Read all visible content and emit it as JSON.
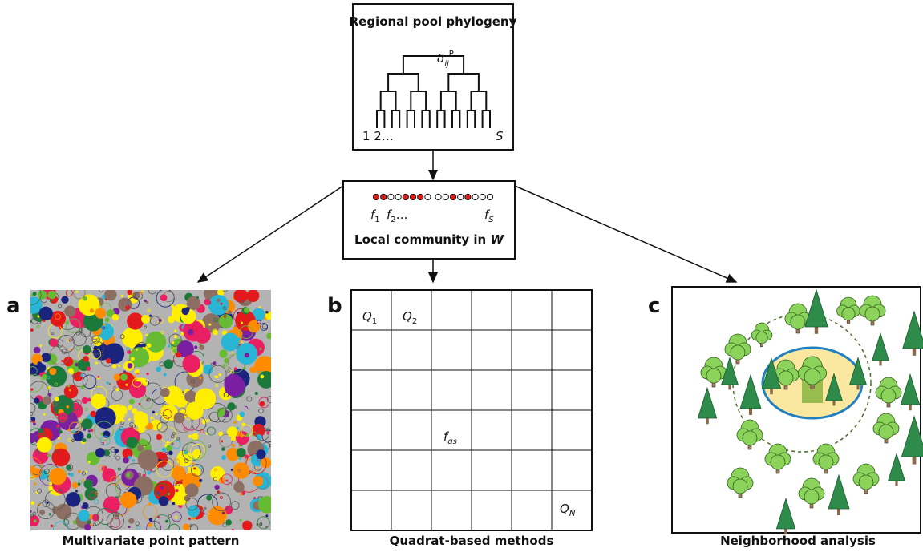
{
  "top_box": {
    "title": "Regional pool phylogeny",
    "distance": {
      "base": "δ",
      "sub": "ij",
      "sup": "P"
    },
    "tips_first": "1 2…",
    "tips_last": "S"
  },
  "middle_box": {
    "title": "Local community in ",
    "title_emphasis": "W",
    "f1": {
      "base": "f",
      "sub": "1"
    },
    "f2": {
      "base": "f",
      "sub": "2",
      "tail": "…"
    },
    "fS": {
      "base": "f",
      "sub": "S"
    }
  },
  "panels": [
    {
      "letter": "a",
      "caption": "Multivariate point pattern"
    },
    {
      "letter": "b",
      "caption": "Quadrat-based methods",
      "q1": {
        "base": "Q",
        "sub": "1"
      },
      "q2": {
        "base": "Q",
        "sub": "2"
      },
      "fqs": {
        "base": "f",
        "sub": "qs"
      },
      "qn": {
        "base": "Q",
        "sub": "N"
      }
    },
    {
      "letter": "c",
      "caption": "Neighborhood analysis"
    }
  ]
}
